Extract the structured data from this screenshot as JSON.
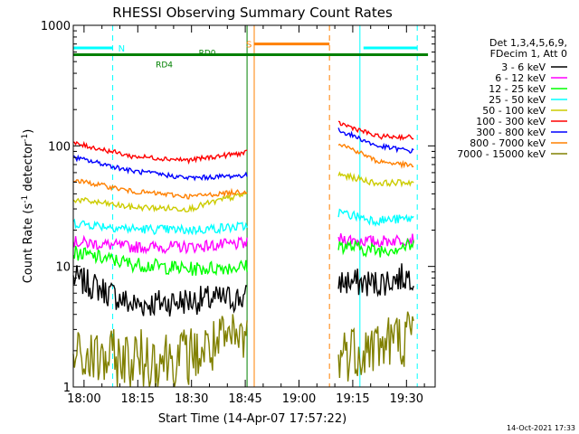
{
  "chart_data": {
    "type": "line",
    "title": "RHESSI Observing Summary Count Rates",
    "xlabel": "Start Time (14-Apr-07 17:57:22)",
    "ylabel_main": "Count Rate (s",
    "ylabel_sup1": "-1",
    "ylabel_mid": " detector",
    "ylabel_sup2": "-1",
    "ylabel_end": ")",
    "y_scale": "log",
    "ylim": [
      1,
      1000
    ],
    "xlim_minutes": [
      -3,
      98
    ],
    "x_ticks": [
      {
        "label": "18:00",
        "m": 0
      },
      {
        "label": "18:15",
        "m": 15
      },
      {
        "label": "18:30",
        "m": 30
      },
      {
        "label": "18:45",
        "m": 45
      },
      {
        "label": "19:00",
        "m": 60
      },
      {
        "label": "19:15",
        "m": 75
      },
      {
        "label": "19:30",
        "m": 90
      }
    ],
    "y_ticks": [
      {
        "label": "1",
        "v": 1
      },
      {
        "label": "10",
        "v": 10
      },
      {
        "label": "100",
        "v": 100
      },
      {
        "label": "1000",
        "v": 1000
      }
    ],
    "legend": {
      "placement": "right",
      "header": [
        "Det 1,3,4,5,6,9,",
        "FDecim 1, Att 0"
      ]
    },
    "series": [
      {
        "name": "3 - 6 keV",
        "color": "#000000",
        "seg1": [
          8,
          4.8,
          5.2,
          5.5
        ],
        "seg2": [
          7.5,
          7.2,
          8.5
        ],
        "noise": 0.12
      },
      {
        "name": "6 - 12 keV",
        "color": "#ff00ff",
        "seg1": [
          16,
          14.5,
          14.5,
          15.5
        ],
        "seg2": [
          17,
          16,
          17
        ],
        "noise": 0.05
      },
      {
        "name": "12 - 25 keV",
        "color": "#00ff00",
        "seg1": [
          13,
          10.5,
          9.5,
          10
        ],
        "seg2": [
          15,
          13.5,
          15
        ],
        "noise": 0.06
      },
      {
        "name": "25 - 50 keV",
        "color": "#00ffff",
        "seg1": [
          23,
          20.5,
          20,
          21.5
        ],
        "seg2": [
          28,
          24,
          25
        ],
        "noise": 0.04
      },
      {
        "name": "50 - 100 keV",
        "color": "#cccc00",
        "seg1": [
          36,
          31,
          30,
          40
        ],
        "seg2": [
          58,
          49,
          50
        ],
        "noise": 0.025
      },
      {
        "name": "100 - 300 keV",
        "color": "#ff0000",
        "seg1": [
          105,
          82,
          76,
          88
        ],
        "seg2": [
          155,
          120,
          118
        ],
        "noise": 0.02
      },
      {
        "name": "300 - 800 keV",
        "color": "#0000ff",
        "seg1": [
          80,
          62,
          54,
          57
        ],
        "seg2": [
          135,
          100,
          90
        ],
        "noise": 0.02
      },
      {
        "name": "800 - 7000 keV",
        "color": "#ff8000",
        "seg1": [
          52,
          42,
          38,
          42
        ],
        "seg2": [
          105,
          75,
          68
        ],
        "noise": 0.02
      },
      {
        "name": "7000 - 15000 keV",
        "color": "#808000",
        "seg1": [
          1.7,
          1.7,
          1.8,
          2.6
        ],
        "seg2": [
          1.9,
          2.2,
          2.7
        ],
        "noise": 0.25
      }
    ],
    "segments_minutes": [
      [
        -3,
        45.5
      ],
      [
        71,
        92
      ]
    ],
    "night_markers": {
      "color": "#00ffff",
      "solid_minutes": [
        -3,
        77
      ],
      "dashed_minutes": [
        8,
        93
      ]
    },
    "flags": [
      {
        "label": "N",
        "color": "#00ffff",
        "level": 650,
        "ranges": [
          [
            -3,
            8
          ],
          [
            78,
            93
          ]
        ]
      },
      {
        "label": "S",
        "color": "#ff8000",
        "level": 700,
        "ranges": [
          [
            47.5,
            68.5
          ]
        ]
      },
      {
        "label": "",
        "color": "#008000",
        "level": 570,
        "ranges": [
          [
            -3,
            96
          ]
        ]
      }
    ],
    "saa_markers": {
      "color": "#ff8000",
      "solid_minutes": [
        47.5
      ],
      "dashed_minutes": [
        68.5
      ]
    },
    "attenuator_markers": {
      "color": "#008000",
      "solid_minutes": [
        45.5
      ]
    },
    "decimation_labels": [
      {
        "label": "RD0",
        "color": "#008000",
        "m": 32,
        "v": 590
      },
      {
        "label": "RD4",
        "color": "#008000",
        "m": 20,
        "v": 470
      }
    ]
  },
  "footer_timestamp": "14-Oct-2021 17:33"
}
